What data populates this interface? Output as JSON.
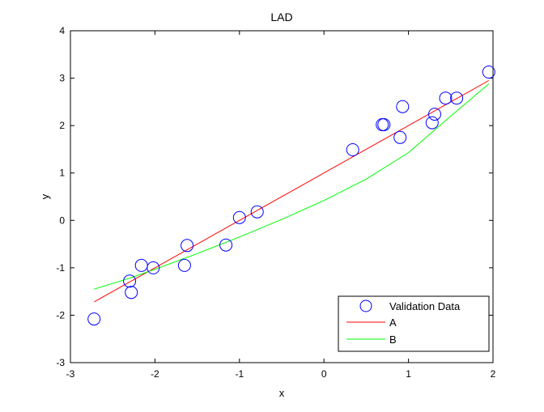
{
  "chart_data": {
    "type": "scatter",
    "title": "LAD",
    "xlabel": "x",
    "ylabel": "y",
    "xlim": [
      -3,
      2
    ],
    "ylim": [
      -3,
      4
    ],
    "xticks": [
      "-3",
      "-2",
      "-1",
      "0",
      "1",
      "2"
    ],
    "yticks": [
      "-3",
      "-2",
      "-1",
      "0",
      "1",
      "2",
      "3",
      "4"
    ],
    "grid": false,
    "legend_position": "bottom-right",
    "series": [
      {
        "name": "Validation Data",
        "kind": "markers",
        "marker": "circle",
        "color": "#0000ff",
        "points": [
          [
            -2.72,
            -2.08
          ],
          [
            -2.3,
            -1.28
          ],
          [
            -2.28,
            -1.52
          ],
          [
            -2.16,
            -0.95
          ],
          [
            -2.02,
            -1.0
          ],
          [
            -1.65,
            -0.95
          ],
          [
            -1.62,
            -0.53
          ],
          [
            -1.16,
            -0.52
          ],
          [
            -1.0,
            0.06
          ],
          [
            -0.79,
            0.18
          ],
          [
            0.34,
            1.49
          ],
          [
            0.69,
            2.02
          ],
          [
            0.71,
            2.02
          ],
          [
            0.9,
            1.75
          ],
          [
            0.93,
            2.4
          ],
          [
            1.28,
            2.06
          ],
          [
            1.31,
            2.24
          ],
          [
            1.44,
            2.58
          ],
          [
            1.57,
            2.58
          ],
          [
            1.95,
            3.13
          ]
        ]
      },
      {
        "name": "A",
        "kind": "line",
        "color": "#ff0000",
        "points": [
          [
            -2.72,
            -1.72
          ],
          [
            1.95,
            2.95
          ]
        ]
      },
      {
        "name": "B",
        "kind": "line",
        "color": "#00ff00",
        "points": [
          [
            -2.72,
            -1.45
          ],
          [
            -2.3,
            -1.22
          ],
          [
            -2.0,
            -1.03
          ],
          [
            -1.5,
            -0.7
          ],
          [
            -1.0,
            -0.35
          ],
          [
            -0.5,
            0.02
          ],
          [
            0.0,
            0.42
          ],
          [
            0.5,
            0.87
          ],
          [
            1.0,
            1.43
          ],
          [
            1.5,
            2.2
          ],
          [
            1.95,
            2.88
          ]
        ]
      }
    ]
  }
}
